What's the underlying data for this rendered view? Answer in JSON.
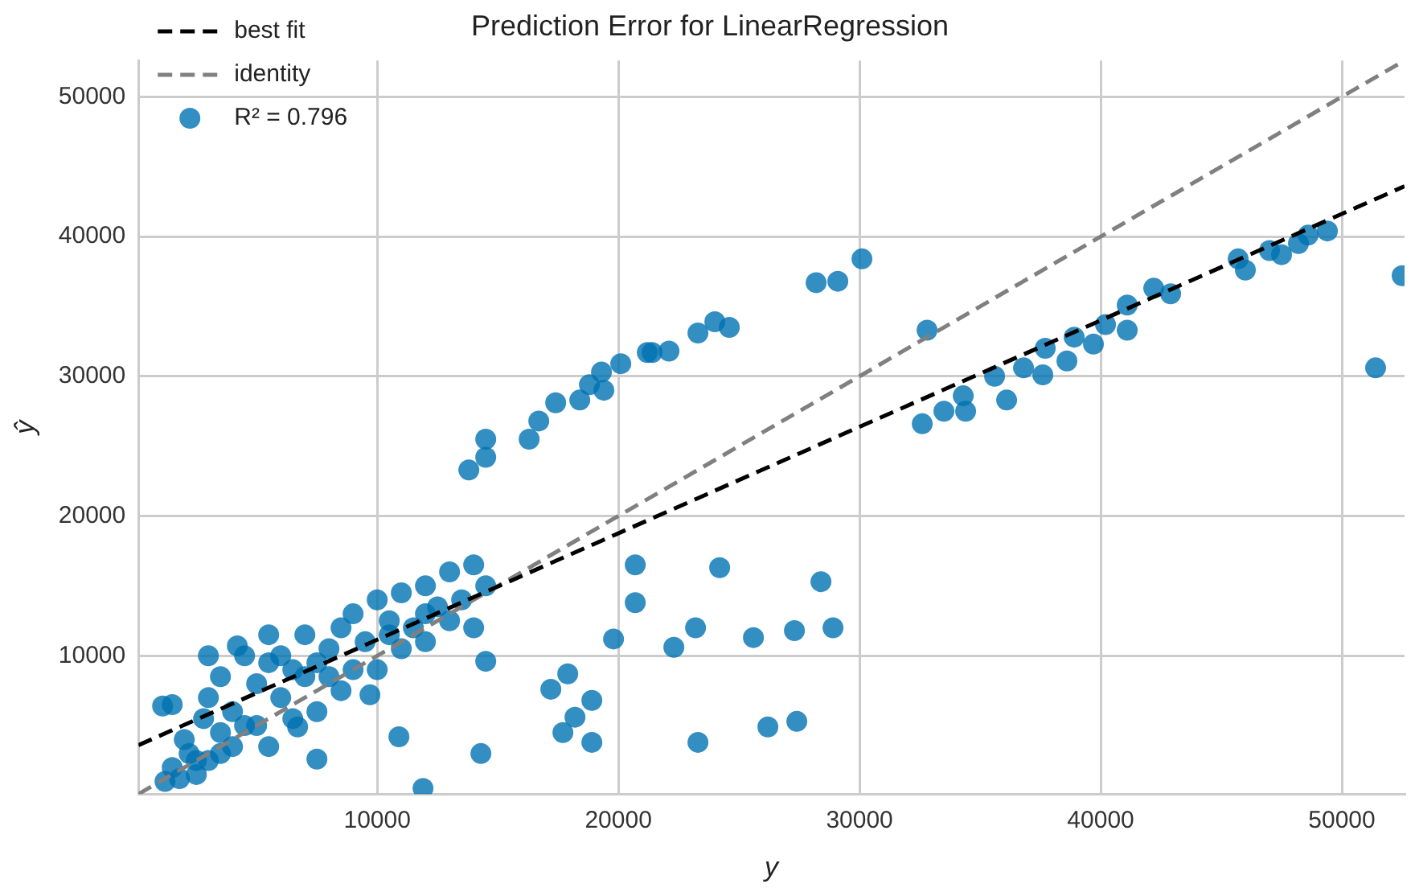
{
  "chart_data": {
    "type": "scatter",
    "title": "Prediction Error for LinearRegression",
    "xlabel": "y",
    "ylabel": "ŷ",
    "xlim": [
      100,
      52600
    ],
    "ylim": [
      100,
      52600
    ],
    "xticks": [
      10000,
      20000,
      30000,
      40000,
      50000
    ],
    "yticks": [
      10000,
      20000,
      30000,
      40000,
      50000
    ],
    "grid": true,
    "legend": "top left",
    "series": [
      {
        "name": "best fit",
        "type": "line",
        "color": "#000000",
        "line_style": "dashed",
        "marker": "none",
        "x": [
          100,
          52600
        ],
        "values": [
          3600,
          43600
        ]
      },
      {
        "name": "identity",
        "type": "line",
        "color": "#808080",
        "line_style": "dashed",
        "marker": "none",
        "x": [
          100,
          52600
        ],
        "values": [
          100,
          52600
        ]
      },
      {
        "name": "R² = 0.796",
        "type": "scatter",
        "color": "#0072b2",
        "marker": "circle",
        "x": [
          1200,
          1500,
          1500,
          1800,
          2000,
          2200,
          2500,
          2500,
          2800,
          3000,
          3000,
          3000,
          3500,
          3500,
          3500,
          4000,
          4000,
          4200,
          4500,
          4500,
          5000,
          5000,
          5500,
          5500,
          5500,
          6000,
          6000,
          6500,
          6500,
          6700,
          7000,
          7000,
          7500,
          7500,
          7500,
          8000,
          8000,
          8500,
          8500,
          9000,
          9000,
          9500,
          9700,
          10000,
          10000,
          10500,
          10500,
          10900,
          11000,
          11000,
          11500,
          11900,
          12000,
          12000,
          12000,
          12500,
          13000,
          13000,
          13500,
          14000,
          14000,
          14300,
          14500,
          14500,
          1100,
          17200,
          17900,
          18900,
          18200,
          17700,
          18900,
          19800,
          20700,
          20700,
          24200,
          23200,
          22300,
          25600,
          27300,
          28900,
          28400,
          23300,
          26200,
          27400,
          51400,
          52500,
          13800,
          14500,
          14500,
          16300,
          16700,
          17400,
          18400,
          18800,
          19400,
          19300,
          20100,
          21200,
          21400,
          22100,
          23300,
          24000,
          24600,
          28200,
          29100,
          30100,
          32800,
          32600,
          33500,
          34300,
          34400,
          35600,
          36100,
          36800,
          37600,
          37700,
          38600,
          38900,
          39700,
          40200,
          41100,
          41100,
          42200,
          42900,
          45700,
          46000,
          47000,
          47500,
          48200,
          48600,
          49400
        ],
        "values": [
          1000,
          6500,
          2000,
          1200,
          4000,
          3000,
          1500,
          2500,
          5500,
          2500,
          7000,
          10000,
          4500,
          8500,
          3000,
          3500,
          6000,
          10700,
          10000,
          5000,
          5000,
          8000,
          11500,
          3500,
          9500,
          7000,
          10000,
          5500,
          9000,
          4900,
          11500,
          8500,
          2600,
          6000,
          9500,
          10500,
          8500,
          7500,
          12000,
          9000,
          13000,
          11000,
          7200,
          14000,
          9000,
          12500,
          11500,
          4200,
          10500,
          14500,
          12000,
          500,
          15000,
          11000,
          13000,
          13500,
          16000,
          12500,
          14000,
          16500,
          12000,
          3000,
          15000,
          9600,
          6400,
          7600,
          8700,
          6800,
          5600,
          4500,
          3800,
          11200,
          13800,
          16500,
          16300,
          12000,
          10600,
          11300,
          11800,
          12000,
          15300,
          3800,
          4900,
          5300,
          30600,
          37200,
          23300,
          25500,
          24200,
          25500,
          26800,
          28100,
          28300,
          29400,
          29000,
          30300,
          30900,
          31700,
          31700,
          31800,
          33100,
          33900,
          33500,
          36700,
          36800,
          38400,
          33300,
          26600,
          27500,
          28600,
          27500,
          30000,
          28300,
          30600,
          30100,
          32000,
          31100,
          32800,
          32300,
          33700,
          33300,
          35100,
          36300,
          35900,
          38400,
          37600,
          39000,
          38700,
          39500,
          40100,
          40400
        ]
      }
    ]
  }
}
